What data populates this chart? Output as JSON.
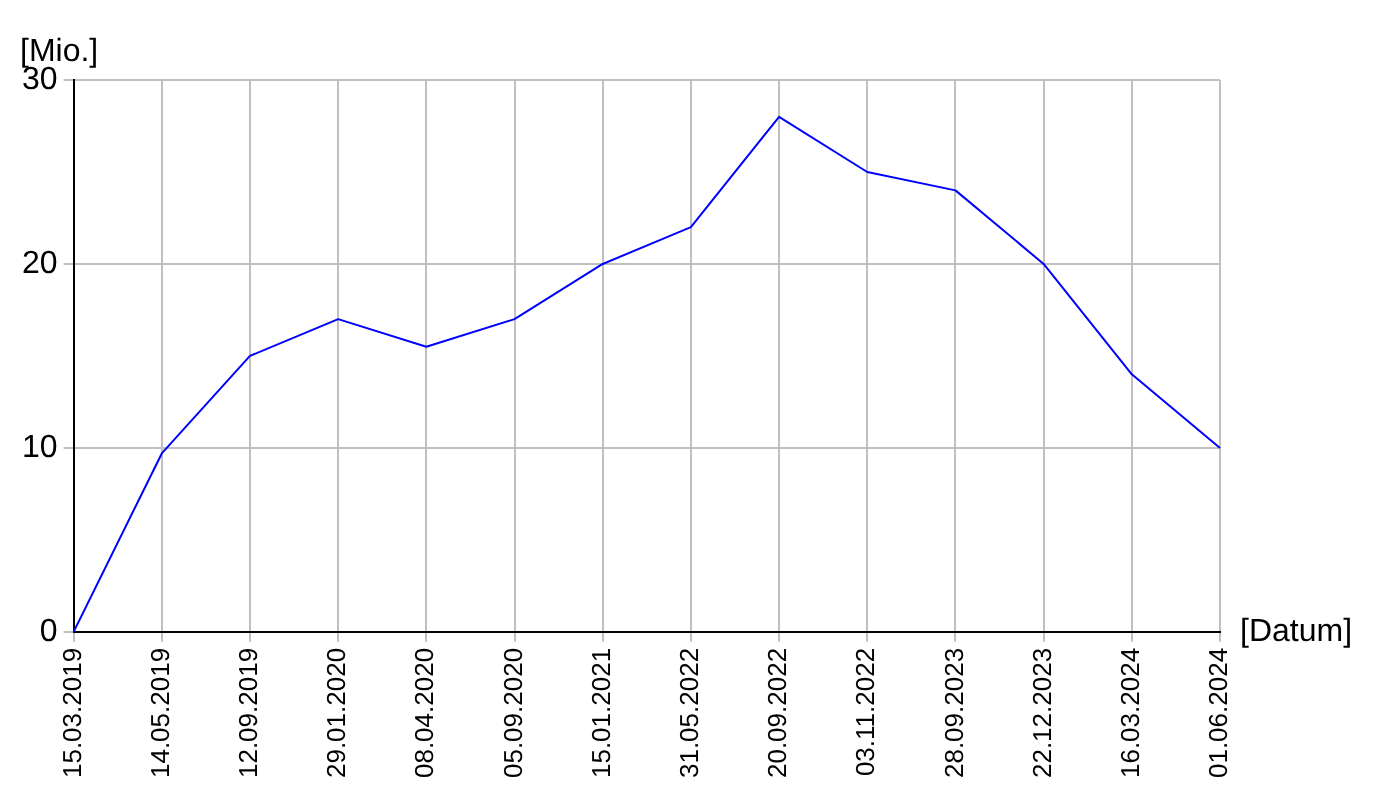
{
  "chart_data": {
    "type": "line",
    "xlabel": "[Datum]",
    "ylabel": "[Mio.]",
    "categories": [
      "15.03.2019",
      "14.05.2019",
      "12.09.2019",
      "29.01.2020",
      "08.04.2020",
      "05.09.2020",
      "15.01.2021",
      "31.05.2022",
      "20.09.2022",
      "03.11.2022",
      "28.09.2023",
      "22.12.2023",
      "16.03.2024",
      "01.06.2024"
    ],
    "series": [
      {
        "color": "#0000ff",
        "values": [
          0,
          9.7,
          15,
          17,
          15.5,
          17,
          20,
          22,
          28,
          25,
          24,
          20,
          14,
          10
        ]
      }
    ],
    "ylim": [
      0,
      30
    ],
    "yticks": [
      0,
      10,
      20,
      30
    ],
    "grid": true,
    "legend": false,
    "marker": "none",
    "line_style": "solid"
  }
}
